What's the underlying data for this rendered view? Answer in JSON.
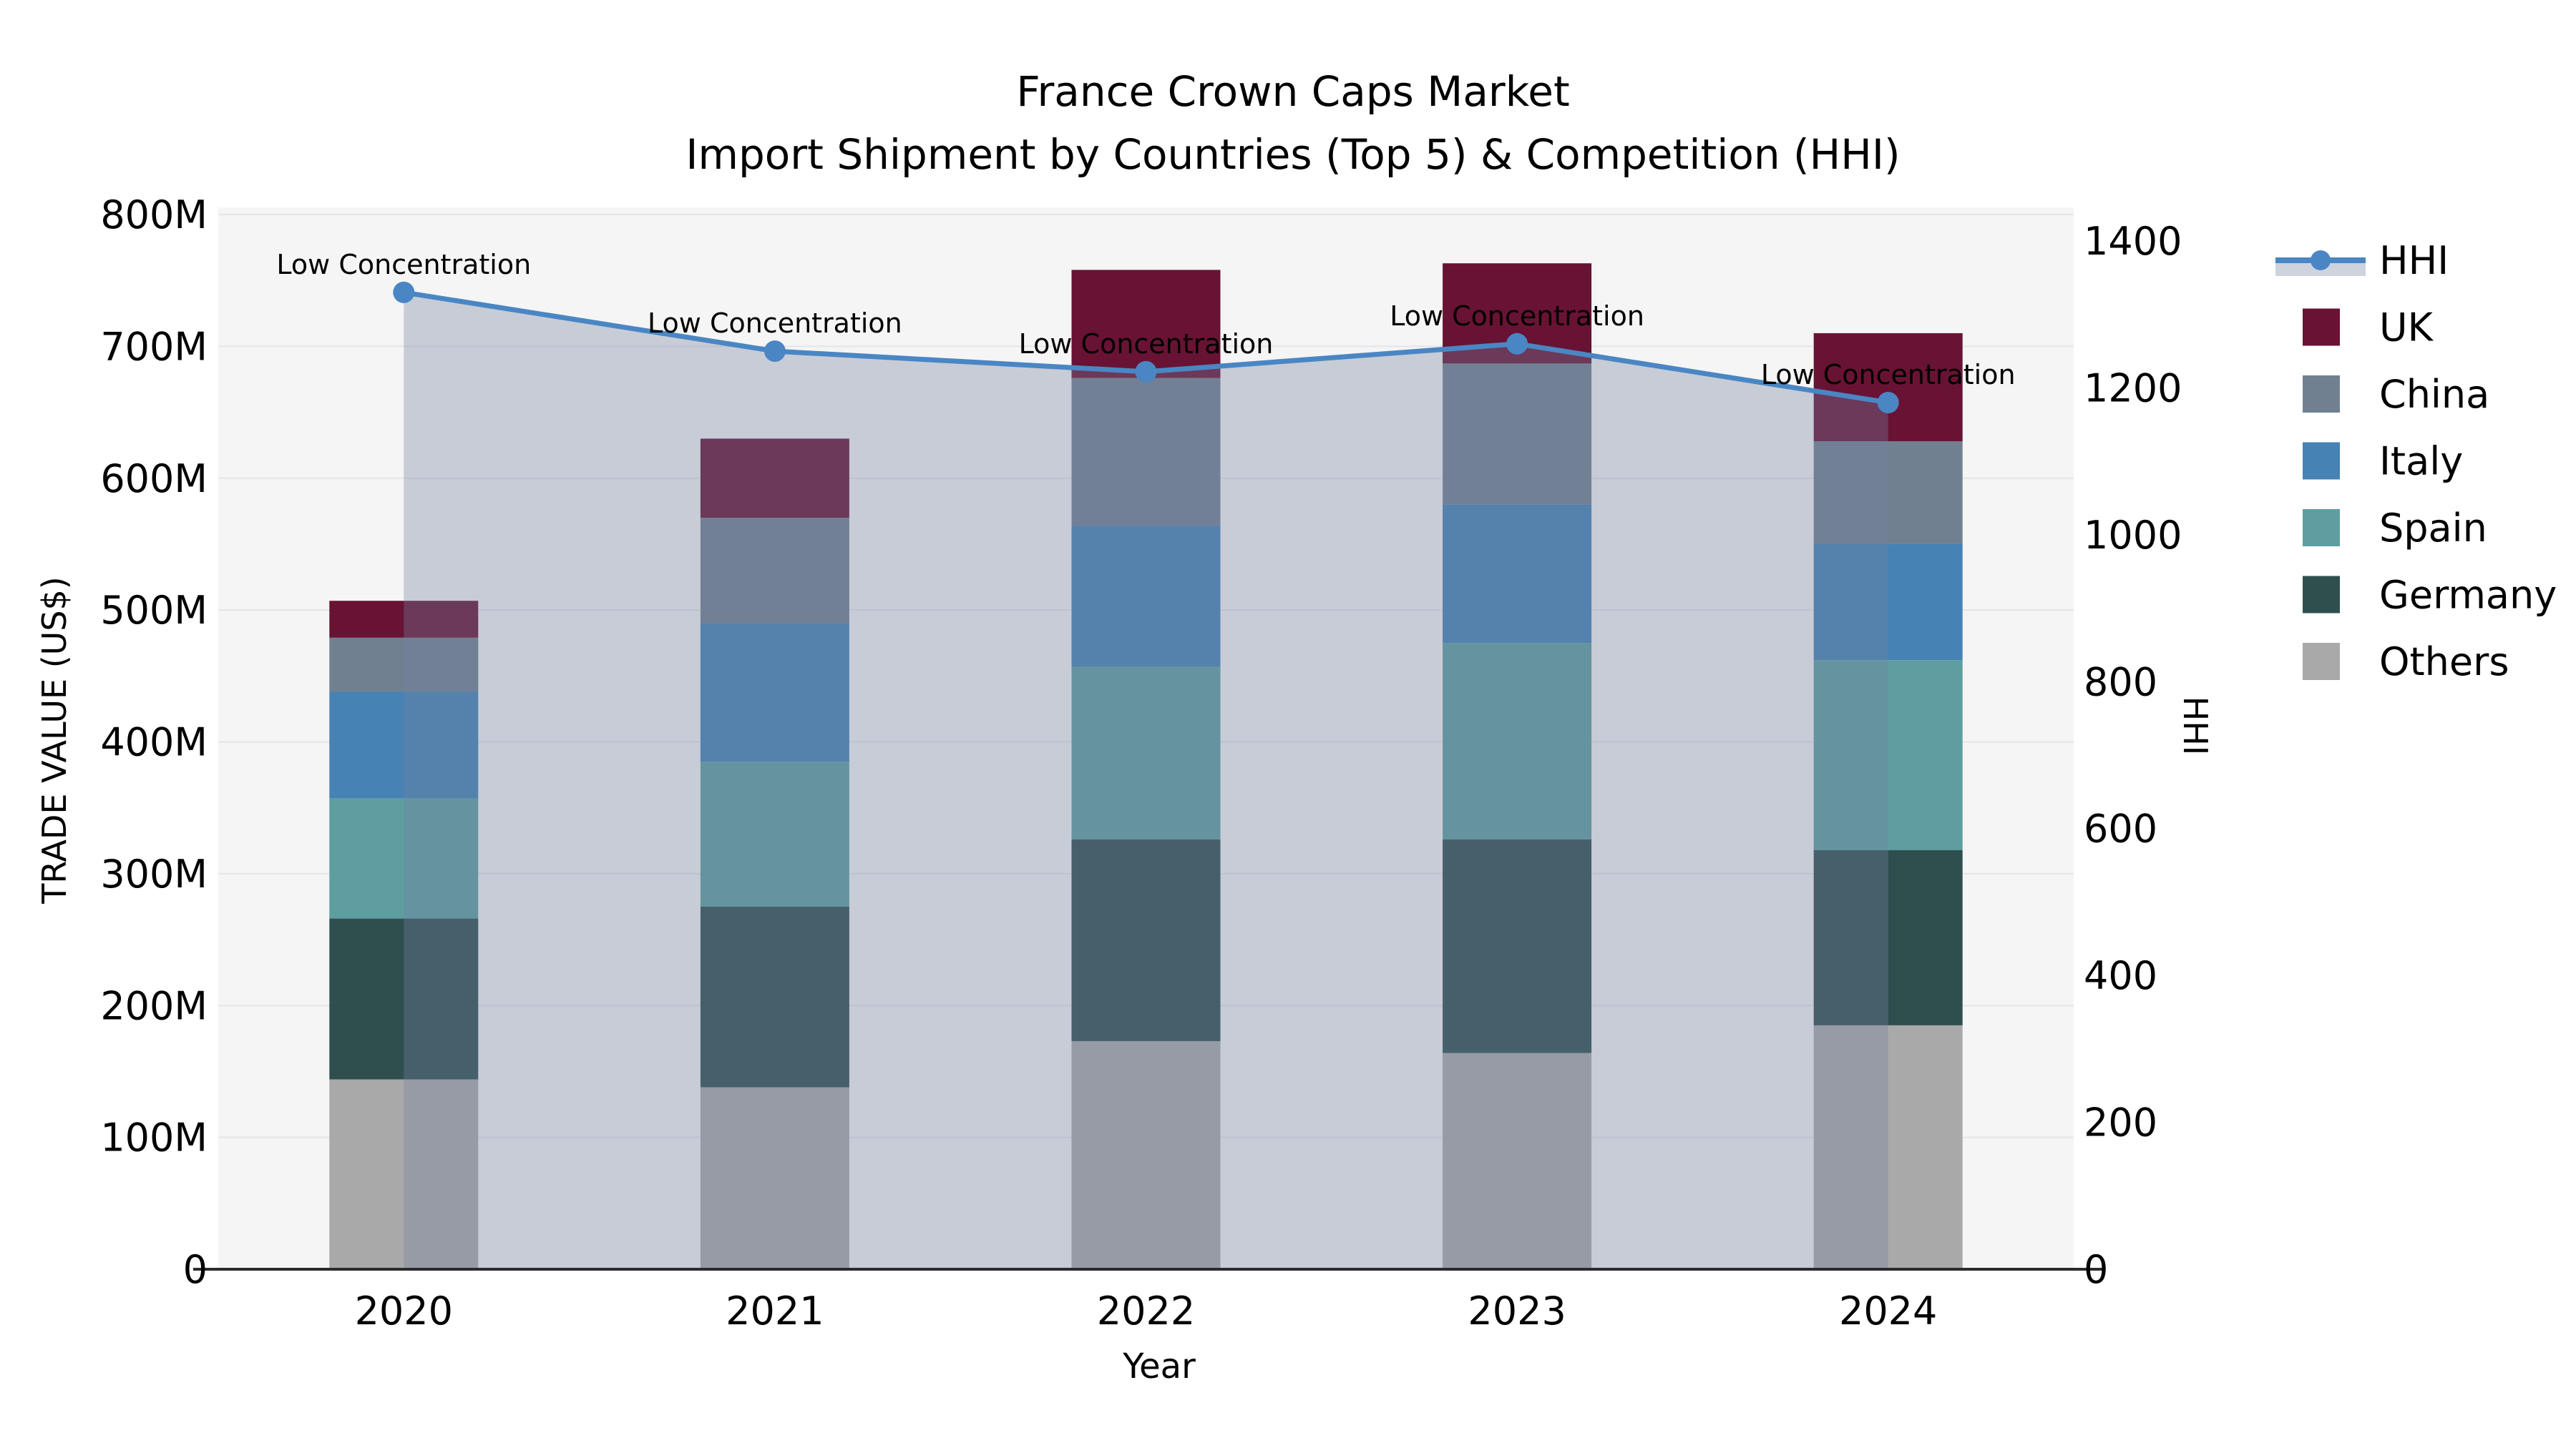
{
  "title": {
    "line1": "France Crown Caps Market",
    "line2": "Import Shipment by Countries (Top 5) & Competition (HHI)"
  },
  "chart_data": {
    "type": "bar",
    "subtype": "stacked-bars-with-line-overlay",
    "categories": [
      "2020",
      "2021",
      "2022",
      "2023",
      "2024"
    ],
    "xlabel": "Year",
    "ylabel_left": "TRADE VALUE (US$)",
    "ylabel_right": "HHI",
    "ylim_left_millions": [
      0,
      800
    ],
    "ylim_right": [
      0,
      1450
    ],
    "yticks_left": [
      {
        "value": 0,
        "label": "0"
      },
      {
        "value": 100,
        "label": "100M"
      },
      {
        "value": 200,
        "label": "200M"
      },
      {
        "value": 300,
        "label": "300M"
      },
      {
        "value": 400,
        "label": "400M"
      },
      {
        "value": 500,
        "label": "500M"
      },
      {
        "value": 600,
        "label": "600M"
      },
      {
        "value": 700,
        "label": "700M"
      },
      {
        "value": 800,
        "label": "800M"
      }
    ],
    "yticks_right": [
      {
        "value": 0,
        "label": "0"
      },
      {
        "value": 200,
        "label": "200"
      },
      {
        "value": 400,
        "label": "400"
      },
      {
        "value": 600,
        "label": "600"
      },
      {
        "value": 800,
        "label": "800"
      },
      {
        "value": 1000,
        "label": "1000"
      },
      {
        "value": 1200,
        "label": "1200"
      },
      {
        "value": 1400,
        "label": "1400"
      }
    ],
    "bar_series_bottom_to_top": [
      {
        "name": "Others",
        "color": "#A9A9A9",
        "values_millions": [
          144,
          138,
          173,
          164,
          185
        ]
      },
      {
        "name": "Germany",
        "color": "#2F4F4F",
        "values_millions": [
          122,
          137,
          153,
          162,
          133
        ]
      },
      {
        "name": "Spain",
        "color": "#5F9EA0",
        "values_millions": [
          91,
          110,
          131,
          149,
          144
        ]
      },
      {
        "name": "Italy",
        "color": "#4682B4",
        "values_millions": [
          81,
          105,
          107,
          105,
          88
        ]
      },
      {
        "name": "China",
        "color": "#708090",
        "values_millions": [
          41,
          80,
          112,
          107,
          78
        ]
      },
      {
        "name": "UK",
        "color": "#681334",
        "values_millions": [
          28,
          60,
          82,
          76,
          82
        ]
      }
    ],
    "bar_totals_millions": [
      507,
      630,
      758,
      763,
      710
    ],
    "line_series": {
      "name": "HHI",
      "color": "#4A86C3",
      "area_fill": "rgba(114,130,160,0.35)",
      "values": [
        1330,
        1250,
        1222,
        1260,
        1180
      ]
    },
    "annotations": [
      {
        "year": "2020",
        "text": "Low Concentration"
      },
      {
        "year": "2021",
        "text": "Low Concentration"
      },
      {
        "year": "2022",
        "text": "Low Concentration"
      },
      {
        "year": "2023",
        "text": "Low Concentration"
      },
      {
        "year": "2024",
        "text": "Low Concentration"
      }
    ],
    "legend_order": [
      "HHI",
      "UK",
      "China",
      "Italy",
      "Spain",
      "Germany",
      "Others"
    ],
    "legend_position": "right",
    "plot_background": "#f5f5f5",
    "gridline_color": "#e4e5e9",
    "grid_on": true
  }
}
